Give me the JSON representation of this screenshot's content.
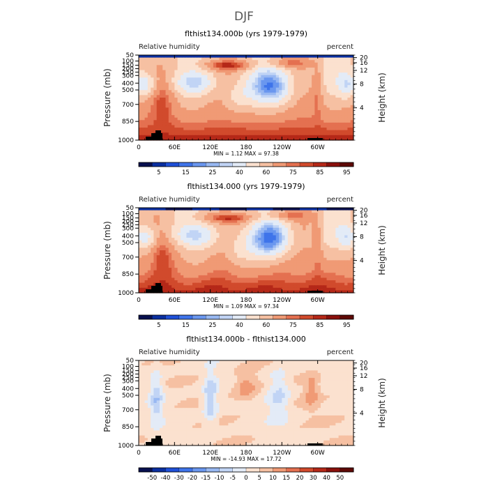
{
  "title": "DJF",
  "chart_data": [
    {
      "type": "heatmap",
      "panel_title": "flthist134.000b (yrs 1979-1979)",
      "left_label": "Relative humidity",
      "right_label": "percent",
      "ylabel": "Pressure (mb)",
      "ylabel_right": "Height (km)",
      "x_ticks": [
        "0",
        "60E",
        "120E",
        "180",
        "120W",
        "60W"
      ],
      "y_ticks": [
        "50",
        "100",
        "150",
        "200",
        "250",
        "300",
        "400",
        "500",
        "700",
        "850",
        "1000"
      ],
      "y_right_ticks": [
        "20",
        "16",
        "12",
        "8",
        "4"
      ],
      "stats": {
        "min_label": "MIN =",
        "min": "1.12",
        "max_label": "MAX =",
        "max": "97.38"
      },
      "colorbar_labels": [
        "5",
        "15",
        "25",
        "40",
        "60",
        "75",
        "85",
        "95"
      ]
    },
    {
      "type": "heatmap",
      "panel_title": "flthist134.000 (yrs 1979-1979)",
      "left_label": "Relative humidity",
      "right_label": "percent",
      "ylabel": "Pressure (mb)",
      "ylabel_right": "Height (km)",
      "x_ticks": [
        "0",
        "60E",
        "120E",
        "180",
        "120W",
        "60W"
      ],
      "y_ticks": [
        "50",
        "100",
        "150",
        "200",
        "250",
        "300",
        "400",
        "500",
        "700",
        "850",
        "1000"
      ],
      "y_right_ticks": [
        "20",
        "16",
        "12",
        "8",
        "4"
      ],
      "stats": {
        "min_label": "MIN =",
        "min": "1.09",
        "max_label": "MAX =",
        "max": "97.34"
      },
      "colorbar_labels": [
        "5",
        "15",
        "25",
        "40",
        "60",
        "75",
        "85",
        "95"
      ]
    },
    {
      "type": "heatmap",
      "panel_title": "flthist134.000b - flthist134.000",
      "left_label": "Relative humidity",
      "right_label": "percent",
      "ylabel": "Pressure (mb)",
      "ylabel_right": "Height (km)",
      "x_ticks": [
        "0",
        "60E",
        "120E",
        "180",
        "120W",
        "60W"
      ],
      "y_ticks": [
        "50",
        "100",
        "150",
        "200",
        "250",
        "300",
        "400",
        "500",
        "700",
        "850",
        "1000"
      ],
      "y_right_ticks": [
        "20",
        "16",
        "12",
        "8",
        "4"
      ],
      "stats": {
        "min_label": "MIN =",
        "min": "-14.93",
        "max_label": "MAX =",
        "max": "17.72"
      },
      "colorbar_labels": [
        "-50",
        "-40",
        "-30",
        "-20",
        "-15",
        "-10",
        "-5",
        "0",
        "5",
        "10",
        "15",
        "20",
        "30",
        "40",
        "50"
      ]
    }
  ],
  "colors": {
    "rh_scale": [
      "#08104f",
      "#0a2fa0",
      "#1f50d8",
      "#3f74ea",
      "#6a97ef",
      "#98b8f2",
      "#c1d4f5",
      "#e3ebf7",
      "#fbe1cf",
      "#f6c0a2",
      "#f09a75",
      "#e47050",
      "#d14a2c",
      "#b52818",
      "#8a100c",
      "#5e0906"
    ],
    "diff_scale": [
      "#08104f",
      "#0a2fa0",
      "#1f50d8",
      "#3f74ea",
      "#6a97ef",
      "#98b8f2",
      "#c1d4f5",
      "#e3ebf7",
      "#fbe1cf",
      "#f6c0a2",
      "#f09a75",
      "#e47050",
      "#d14a2c",
      "#b52818",
      "#8a100c",
      "#5e0906"
    ],
    "topography": "#000000"
  }
}
